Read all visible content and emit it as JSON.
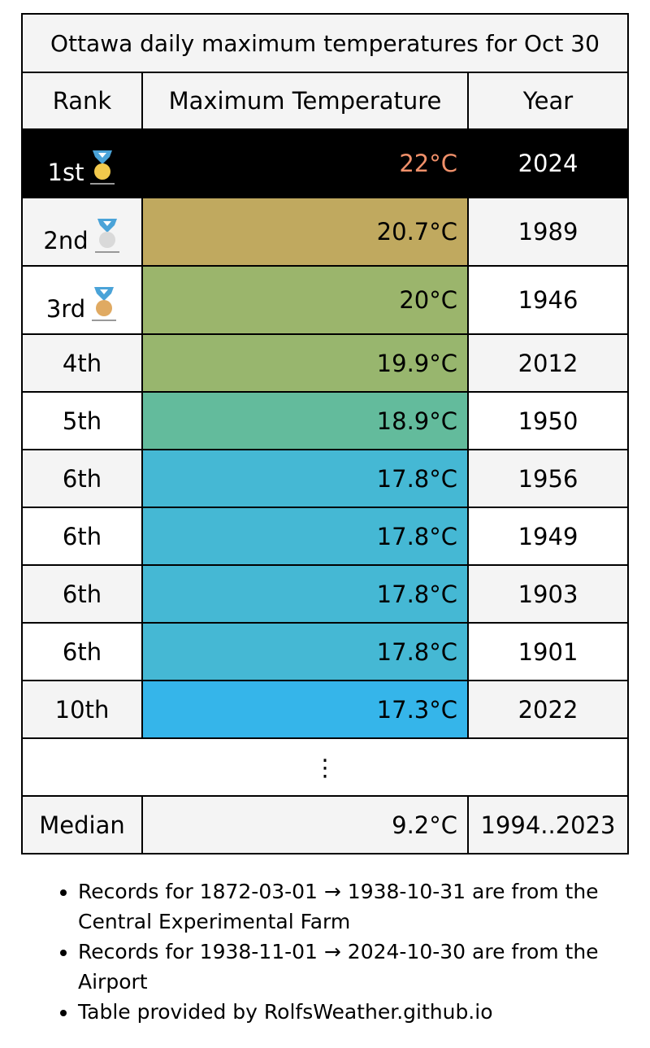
{
  "title": "Ottawa daily maximum temperatures for Oct 30",
  "headers": {
    "rank": "Rank",
    "temp": "Maximum Temperature",
    "year": "Year"
  },
  "rows": [
    {
      "rank": "1st",
      "temp": "22°C",
      "year": "2024",
      "medal": "gold-medal-icon",
      "color": "#000000"
    },
    {
      "rank": "2nd",
      "temp": "20.7°C",
      "year": "1989",
      "medal": "silver-medal-icon",
      "color": "#c0a95f"
    },
    {
      "rank": "3rd",
      "temp": "20°C",
      "year": "1946",
      "medal": "bronze-medal-icon",
      "color": "#9bb56c"
    },
    {
      "rank": "4th",
      "temp": "19.9°C",
      "year": "2012",
      "color": "#98b66e"
    },
    {
      "rank": "5th",
      "temp": "18.9°C",
      "year": "1950",
      "color": "#63bb9c"
    },
    {
      "rank": "6th",
      "temp": "17.8°C",
      "year": "1956",
      "color": "#45b8d4"
    },
    {
      "rank": "6th",
      "temp": "17.8°C",
      "year": "1949",
      "color": "#45b8d4"
    },
    {
      "rank": "6th",
      "temp": "17.8°C",
      "year": "1903",
      "color": "#45b8d4"
    },
    {
      "rank": "6th",
      "temp": "17.8°C",
      "year": "1901",
      "color": "#45b8d4"
    },
    {
      "rank": "10th",
      "temp": "17.3°C",
      "year": "2022",
      "color": "#35b5ea"
    }
  ],
  "ellipsis": "⋮",
  "median": {
    "label": "Median",
    "temp": "9.2°C",
    "years": "1994..2023"
  },
  "notes": [
    "Records for 1872-03-01 → 1938-10-31 are from the Central Experimental Farm",
    "Records for 1938-11-01 → 2024-10-30 are from the Airport",
    "Table provided by RolfsWeather.github.io"
  ]
}
